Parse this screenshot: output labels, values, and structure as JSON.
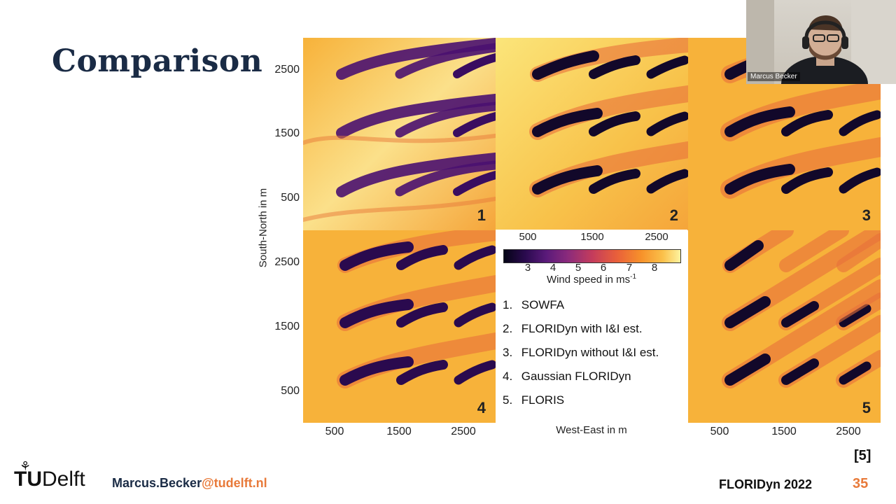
{
  "slide": {
    "title": "Comparison",
    "reference": "[5]",
    "footer": {
      "logo_tu": "TU",
      "logo_delft": "Delft",
      "email_name": "Marcus.Becker",
      "email_domain": "@tudelft.nl",
      "conference": "FLORIDyn 2022",
      "page_number": "35"
    }
  },
  "webcam": {
    "speaker_name": "Marcus Becker"
  },
  "figure": {
    "y_axis_title": "South-North in m",
    "x_axis_title": "West-East in m",
    "y_ticks_top": [
      "2500",
      "1500",
      "500"
    ],
    "y_ticks_bottom": [
      "2500",
      "1500",
      "500"
    ],
    "x_ticks": [
      "500",
      "1500",
      "2500"
    ],
    "panels": [
      "1",
      "2",
      "3",
      "4",
      "5"
    ],
    "colorbar": {
      "top_ticks": [
        "500",
        "1500",
        "2500"
      ],
      "bottom_ticks": [
        "3",
        "4",
        "5",
        "6",
        "7",
        "8"
      ],
      "label": "Wind speed in ms",
      "label_sup": "-1"
    },
    "legend": [
      {
        "num": "1.",
        "text": "SOWFA"
      },
      {
        "num": "2.",
        "text": "FLORIDyn with I&I est."
      },
      {
        "num": "3.",
        "text": "FLORIDyn without I&I est."
      },
      {
        "num": "4.",
        "text": "Gaussian FLORIDyn"
      },
      {
        "num": "5.",
        "text": "FLORIS"
      }
    ]
  }
}
